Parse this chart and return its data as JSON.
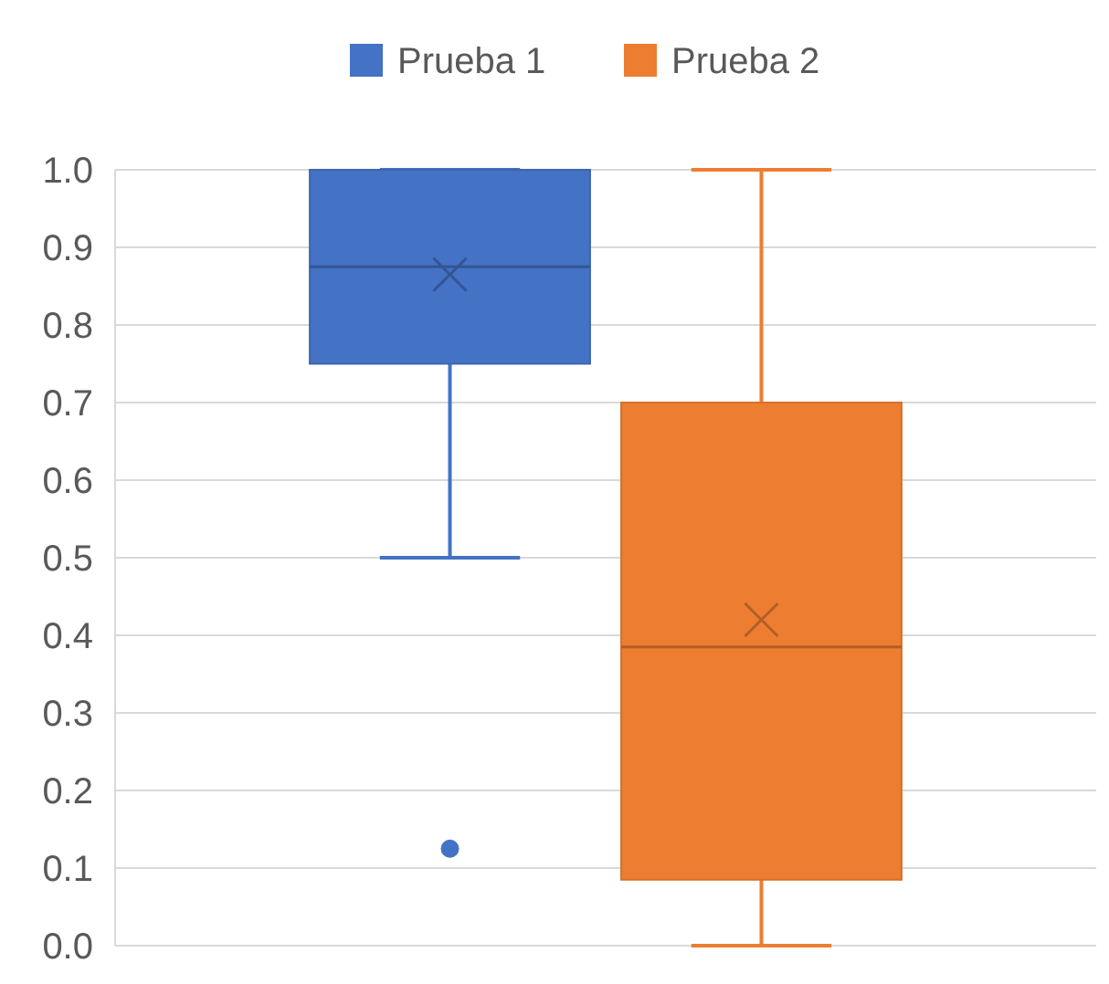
{
  "chart_data": {
    "type": "box",
    "categories": [
      null
    ],
    "series": [
      {
        "name": "Prueba 1",
        "color": "#4472c4",
        "boxes": [
          {
            "low": 0.5,
            "q1": 0.75,
            "median": 0.875,
            "q3": 1.0,
            "high": 1.0,
            "mean": 0.865,
            "outliers": [
              0.125
            ]
          }
        ]
      },
      {
        "name": "Prueba 2",
        "color": "#ed7d31",
        "boxes": [
          {
            "low": 0.0,
            "q1": 0.085,
            "median": 0.385,
            "q3": 0.7,
            "high": 1.0,
            "mean": 0.42
          }
        ]
      }
    ],
    "ylim": [
      0,
      1
    ],
    "yticks": [
      {
        "value": 0,
        "label": "0.0"
      },
      0.1,
      0.2,
      0.3,
      0.4,
      0.5,
      0.6,
      0.7,
      0.8,
      0.9,
      {
        "value": 1,
        "label": "1.0"
      }
    ],
    "grid": "y",
    "legend": "top"
  }
}
